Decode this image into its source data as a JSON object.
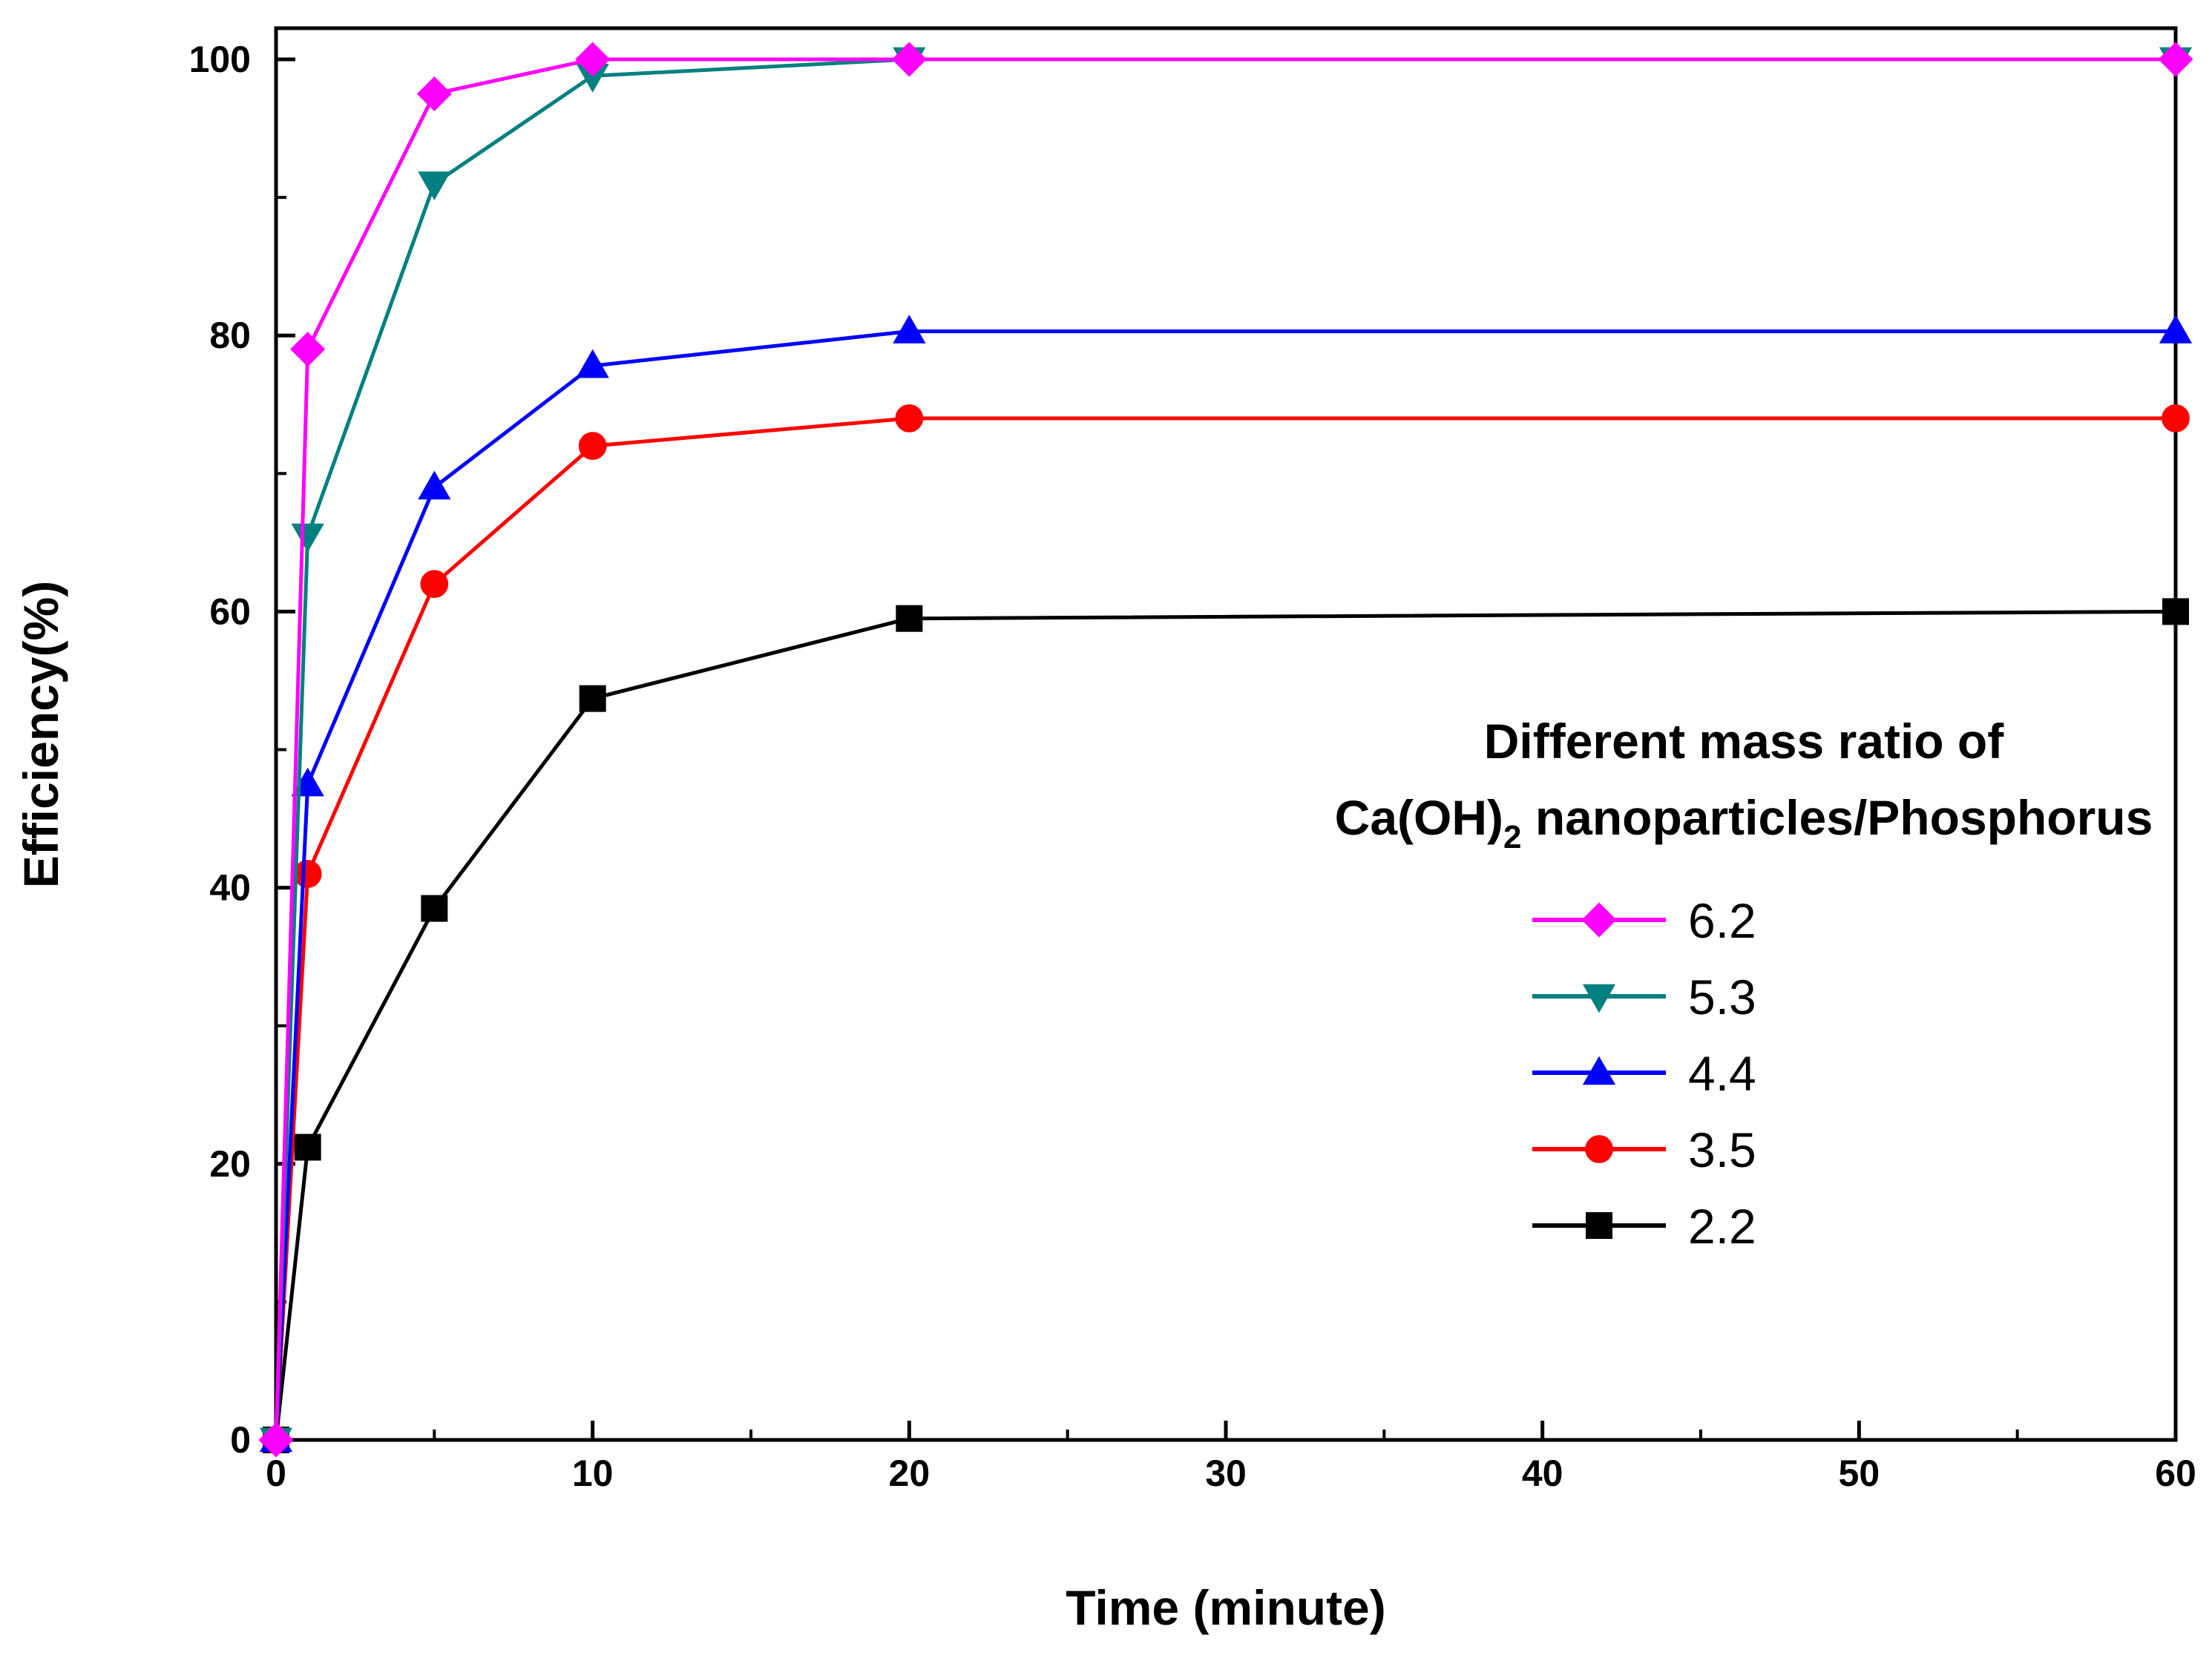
{
  "chart_data": {
    "type": "line",
    "title": "",
    "xlabel": "Time (minute)",
    "ylabel": "Efficiency(%)",
    "xlim": [
      0,
      60
    ],
    "ylim": [
      0,
      100
    ],
    "x_ticks": [
      "0",
      "10",
      "20",
      "30",
      "40",
      "50",
      "60"
    ],
    "y_ticks": [
      "0",
      "20",
      "40",
      "60",
      "80",
      "100"
    ],
    "grid": false,
    "legend_position": "right",
    "legend_title": {
      "line1": "Different mass ratio of",
      "line2_prefix": "Ca(OH)",
      "line2_subscript": "2",
      "line2_suffix": " nanoparticles/Phosphorus"
    },
    "series": [
      {
        "name": "6.2",
        "color": "#ff00ff",
        "marker": "diamond",
        "x": [
          0,
          1,
          5,
          10,
          20,
          60
        ],
        "y": [
          0,
          79,
          97.5,
          100,
          100,
          100
        ]
      },
      {
        "name": "5.3",
        "color": "#008080",
        "marker": "triangle-down",
        "x": [
          0,
          1,
          5,
          10,
          20,
          60
        ],
        "y": [
          0,
          65.5,
          91,
          98.8,
          100,
          100
        ]
      },
      {
        "name": "4.4",
        "color": "#0000ff",
        "marker": "triangle-up",
        "x": [
          0,
          1,
          5,
          10,
          20,
          60
        ],
        "y": [
          0,
          47.5,
          69,
          77.8,
          80.3,
          80.3
        ]
      },
      {
        "name": "3.5",
        "color": "#ff0000",
        "marker": "circle",
        "x": [
          0,
          1,
          5,
          10,
          20,
          60
        ],
        "y": [
          0,
          41,
          62,
          72,
          74,
          74
        ]
      },
      {
        "name": "2.2",
        "color": "#000000",
        "marker": "square",
        "x": [
          0,
          1,
          5,
          10,
          20,
          60
        ],
        "y": [
          0,
          21.2,
          38.5,
          53.7,
          59.5,
          60
        ]
      }
    ]
  }
}
